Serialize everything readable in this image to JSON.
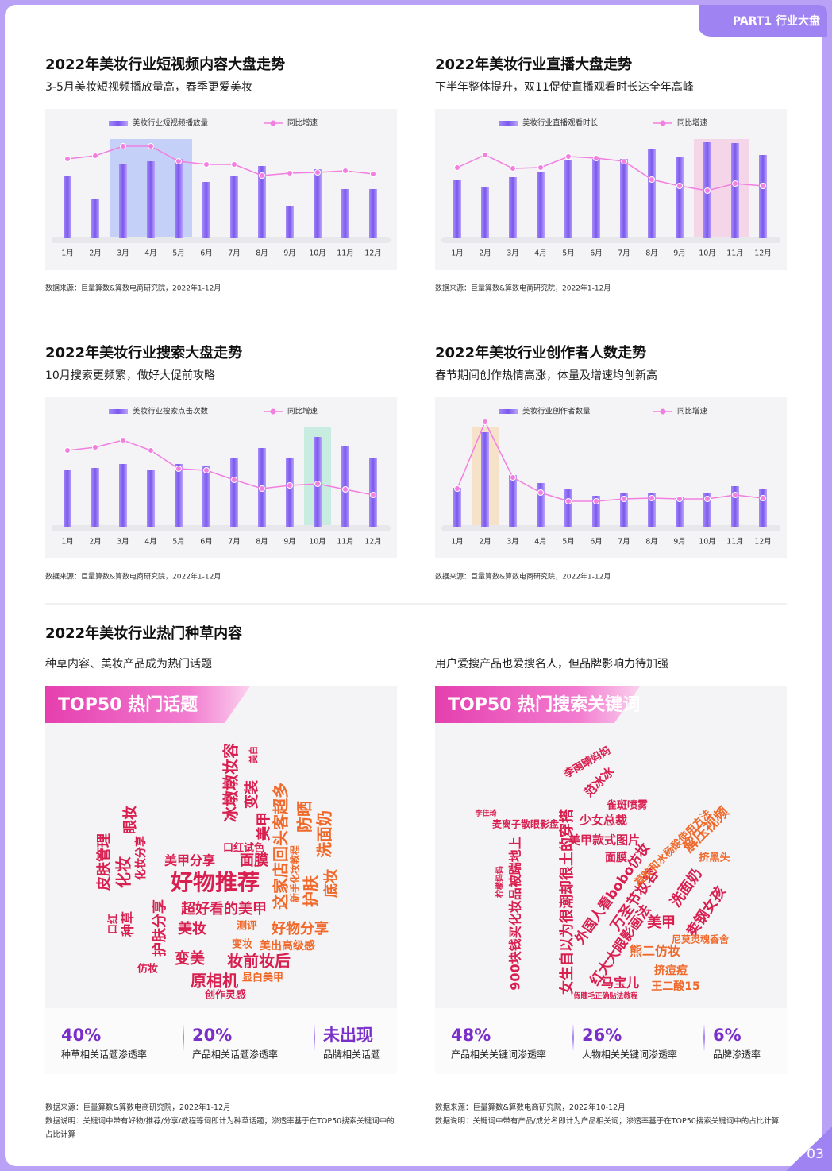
{
  "header": {
    "tab": "PART1 行业大盘",
    "page_number": "03"
  },
  "chart_data": [
    {
      "type": "bar",
      "title": "2022年美妆行业短视频内容大盘走势",
      "subtitle": "3-5月美妆短视频播放量高，春季更爱美妆",
      "source": "数据来源：巨量算数&算数电商研究院，2022年1-12月",
      "categories": [
        "1月",
        "2月",
        "3月",
        "4月",
        "5月",
        "6月",
        "7月",
        "8月",
        "9月",
        "10月",
        "11月",
        "12月"
      ],
      "series": [
        {
          "name": "美妆行业短视频播放量",
          "type": "bar",
          "color": "#8b6cf2",
          "values": [
            79,
            50,
            93,
            97,
            100,
            71,
            78,
            91,
            41,
            87,
            62,
            62
          ]
        },
        {
          "name": "同比增速",
          "type": "line",
          "axis": "y2",
          "color": "#f27ee0",
          "values": [
            100,
            104,
            116,
            116,
            97,
            93,
            93,
            79,
            82,
            83,
            85,
            81
          ]
        }
      ],
      "ylim": [
        0,
        140
      ],
      "y2lim": [
        0,
        140
      ],
      "highlight": [
        2,
        4
      ],
      "highlight_color": "#9db2f7"
    },
    {
      "type": "bar",
      "title": "2022年美妆行业直播大盘走势",
      "subtitle": "下半年整体提升，双11促使直播观看时长达全年高峰",
      "source": "数据来源：巨量算数&算数电商研究院，2022年1-12月",
      "categories": [
        "1月",
        "2月",
        "3月",
        "4月",
        "5月",
        "6月",
        "7月",
        "8月",
        "9月",
        "10月",
        "11月",
        "12月"
      ],
      "series": [
        {
          "name": "美妆行业直播观看时长",
          "type": "bar",
          "color": "#8b6cf2",
          "values": [
            73,
            65,
            77,
            83,
            98,
            100,
            100,
            113,
            103,
            121,
            120,
            105
          ]
        },
        {
          "name": "同比增速",
          "type": "line",
          "axis": "y2",
          "color": "#f27ee0",
          "values": [
            89,
            105,
            88,
            89,
            103,
            101,
            97,
            74,
            66,
            60,
            69,
            66
          ]
        }
      ],
      "ylim": [
        0,
        140
      ],
      "y2lim": [
        0,
        140
      ],
      "highlight": [
        9,
        10
      ],
      "highlight_color": "#f6bcdc"
    },
    {
      "type": "bar",
      "title": "2022年美妆行业搜索大盘走势",
      "subtitle": "10月搜索更频繁，做好大促前攻略",
      "source": "数据来源：巨量算数&算数电商研究院，2022年1-12月",
      "categories": [
        "1月",
        "2月",
        "3月",
        "4月",
        "5月",
        "6月",
        "7月",
        "8月",
        "9月",
        "10月",
        "11月",
        "12月"
      ],
      "series": [
        {
          "name": "美妆行业搜索点击次数",
          "type": "bar",
          "color": "#8b6cf2",
          "values": [
            72,
            74,
            79,
            72,
            79,
            77,
            87,
            99,
            87,
            113,
            101,
            87
          ]
        },
        {
          "name": "同比增速",
          "type": "line",
          "axis": "y2",
          "color": "#f27ee0",
          "values": [
            96,
            100,
            109,
            96,
            73,
            71,
            59,
            48,
            52,
            54,
            47,
            40
          ]
        }
      ],
      "ylim": [
        0,
        140
      ],
      "y2lim": [
        0,
        140
      ],
      "highlight": [
        9,
        9
      ],
      "highlight_color": "#a5e6cd"
    },
    {
      "type": "bar",
      "title": "2022年美妆行业创作者人数走势",
      "subtitle": "春节期间创作热情高涨，体量及增速均创新高",
      "source": "数据来源：巨量算数&算数电商研究院，2022年1-12月",
      "categories": [
        "1月",
        "2月",
        "3月",
        "4月",
        "5月",
        "6月",
        "7月",
        "8月",
        "9月",
        "10月",
        "11月",
        "12月"
      ],
      "series": [
        {
          "name": "美妆行业创作者数量",
          "type": "bar",
          "color": "#8b6cf2",
          "values": [
            49,
            119,
            65,
            55,
            47,
            39,
            42,
            42,
            38,
            42,
            51,
            47
          ]
        },
        {
          "name": "同比增速",
          "type": "line",
          "axis": "y2",
          "color": "#f27ee0",
          "values": [
            48,
            132,
            62,
            43,
            32,
            32,
            35,
            36,
            35,
            35,
            40,
            36
          ]
        }
      ],
      "ylim": [
        0,
        140
      ],
      "y2lim": [
        0,
        140
      ],
      "highlight": [
        1,
        1
      ],
      "highlight_color": "#f8d3a2"
    }
  ],
  "section": {
    "title": "2022年美妆行业热门种草内容",
    "subtitles": [
      "种草内容、美妆产品成为热门话题",
      "用户爱搜产品也爱搜名人，但品牌影响力待加强"
    ]
  },
  "clouds": [
    {
      "banner": "TOP50 热门话题",
      "words": [
        "好物推荐",
        "超好看的美甲",
        "美妆",
        "变美",
        "原相机",
        "创作灵感",
        "妆前妆后",
        "显白美甲",
        "美出高级感",
        "好物分享",
        "测评",
        "变妆",
        "美甲分享",
        "面膜",
        "口红试色",
        "皮肤管理",
        "化妆",
        "眼妆",
        "化妆分享",
        "护肤分享",
        "种草",
        "口红",
        "仿妆",
        "冰墩墩妆容",
        "变装",
        "美甲",
        "这家店回头客超多",
        "防晒",
        "洗面奶",
        "护肤",
        "底妆",
        "新手化妆教程",
        "美白"
      ],
      "stats": [
        {
          "value": "40%",
          "label": "种草相关话题渗透率"
        },
        {
          "value": "20%",
          "label": "产品相关话题渗透率"
        },
        {
          "value": "未出现",
          "label": "品牌相关话题"
        }
      ],
      "notes": [
        "数据来源：巨量算数&算数电商研究院，2022年1-12月",
        "数据说明：关键词中带有好物/推荐/分享/教程等词即计为种草话题；渗透率基于在TOP50搜索关键词中的占比计算"
      ]
    },
    {
      "banner": "TOP50 热门搜索关键词",
      "words": [
        "900块钱买化妆品被踹地上",
        "女生自以为很潮却很土的穿搭",
        "外国人看bobo仿妆",
        "万圣节妆容",
        "美甲",
        "洗面奶",
        "卖钢女孩",
        "红大大眼影画法",
        "熊二仿妆",
        "马宝儿",
        "挤痘痘",
        "王二酸15",
        "尼莫灵魂香舍",
        "美甲款式图片",
        "面膜",
        "少女总裁",
        "雀斑喷雾",
        "范冰冰",
        "李雨睛妈妈",
        "解压视频",
        "挤黑头",
        "凝胶和水杨酸使用方法",
        "麦离子散眼影盘",
        "李佳琦",
        "假睫毛正确贴法教程",
        "柠檬妈妈"
      ],
      "stats": [
        {
          "value": "48%",
          "label": "产品相关关键词渗透率"
        },
        {
          "value": "26%",
          "label": "人物相关关键词渗透率"
        },
        {
          "value": "6%",
          "label": "品牌渗透率"
        }
      ],
      "notes": [
        "数据来源：巨量算数&算数电商研究院，2022年10-12月",
        "数据说明：关键词中带有产品/成分名即计为产品相关词；渗透率基于在TOP50搜索关键词中的占比计算"
      ]
    }
  ]
}
